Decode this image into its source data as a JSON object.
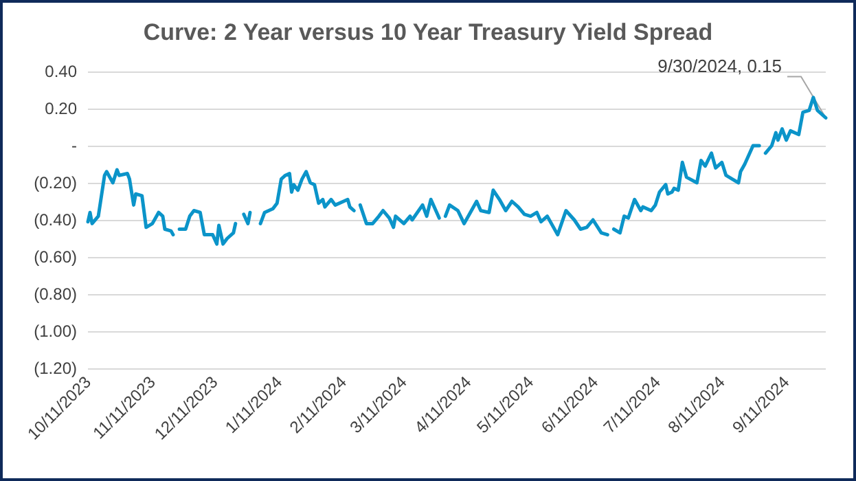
{
  "chart_data": {
    "type": "line",
    "title": "Curve: 2 Year versus 10 Year Treasury Yield Spread",
    "x": [
      "2023-10-11",
      "2023-10-12",
      "2023-10-13",
      "2023-10-16",
      "2023-10-19",
      "2023-10-20",
      "2023-10-23",
      "2023-10-25",
      "2023-10-26",
      "2023-10-30",
      "2023-10-31",
      "2023-11-02",
      "2023-11-03",
      "2023-11-06",
      "2023-11-08",
      "2023-11-11",
      "2023-11-14",
      "2023-11-16",
      "2023-11-17",
      "2023-11-20",
      "2023-11-21",
      "2023-11-22",
      "2023-11-24",
      "2023-11-27",
      "2023-11-29",
      "2023-12-01",
      "2023-12-04",
      "2023-12-06",
      "2023-12-10",
      "2023-12-12",
      "2023-12-13",
      "2023-12-15",
      "2023-12-17",
      "2023-12-20",
      "2023-12-21",
      "2023-12-23",
      "2023-12-25",
      "2023-12-27",
      "2023-12-28",
      "2023-12-30",
      "2024-01-02",
      "2024-01-04",
      "2024-01-08",
      "2024-01-10",
      "2024-01-12",
      "2024-01-14",
      "2024-01-16",
      "2024-01-17",
      "2024-01-18",
      "2024-01-20",
      "2024-01-22",
      "2024-01-24",
      "2024-01-26",
      "2024-01-28",
      "2024-01-30",
      "2024-02-01",
      "2024-02-02",
      "2024-02-05",
      "2024-02-07",
      "2024-02-11",
      "2024-02-13",
      "2024-02-14",
      "2024-02-16",
      "2024-02-17",
      "2024-02-19",
      "2024-02-22",
      "2024-02-25",
      "2024-02-28",
      "2024-03-01",
      "2024-03-04",
      "2024-03-06",
      "2024-03-07",
      "2024-03-11",
      "2024-03-14",
      "2024-03-15",
      "2024-03-20",
      "2024-03-22",
      "2024-03-24",
      "2024-03-28",
      "2024-03-29",
      "2024-03-31",
      "2024-04-02",
      "2024-04-06",
      "2024-04-09",
      "2024-04-12",
      "2024-04-15",
      "2024-04-17",
      "2024-04-21",
      "2024-04-23",
      "2024-04-26",
      "2024-04-29",
      "2024-05-02",
      "2024-05-05",
      "2024-05-08",
      "2024-05-11",
      "2024-05-14",
      "2024-05-16",
      "2024-05-19",
      "2024-05-24",
      "2024-05-28",
      "2024-06-01",
      "2024-06-04",
      "2024-06-07",
      "2024-06-10",
      "2024-06-14",
      "2024-06-17",
      "2024-06-18",
      "2024-06-20",
      "2024-06-23",
      "2024-06-25",
      "2024-06-27",
      "2024-06-30",
      "2024-07-03",
      "2024-07-04",
      "2024-07-08",
      "2024-07-10",
      "2024-07-12",
      "2024-07-15",
      "2024-07-16",
      "2024-07-18",
      "2024-07-19",
      "2024-07-21",
      "2024-07-23",
      "2024-07-25",
      "2024-07-30",
      "2024-08-01",
      "2024-08-03",
      "2024-08-06",
      "2024-08-08",
      "2024-08-11",
      "2024-08-13",
      "2024-08-16",
      "2024-08-19",
      "2024-08-20",
      "2024-08-22",
      "2024-08-26",
      "2024-08-29",
      "2024-08-30",
      "2024-09-01",
      "2024-09-04",
      "2024-09-06",
      "2024-09-07",
      "2024-09-09",
      "2024-09-11",
      "2024-09-13",
      "2024-09-17",
      "2024-09-19",
      "2024-09-22",
      "2024-09-24",
      "2024-09-26",
      "2024-09-30"
    ],
    "series": [
      {
        "color": "#0b94c9",
        "values": [
          -0.41,
          -0.36,
          -0.42,
          -0.38,
          -0.16,
          -0.14,
          -0.2,
          -0.13,
          -0.16,
          -0.15,
          -0.18,
          -0.32,
          -0.26,
          -0.27,
          -0.44,
          -0.42,
          -0.36,
          -0.38,
          -0.45,
          -0.46,
          -0.48,
          null,
          -0.45,
          -0.45,
          -0.38,
          -0.35,
          -0.36,
          -0.48,
          -0.48,
          -0.53,
          -0.43,
          -0.53,
          -0.5,
          -0.47,
          -0.42,
          null,
          -0.37,
          -0.42,
          -0.36,
          null,
          -0.42,
          -0.36,
          -0.34,
          -0.31,
          -0.18,
          -0.16,
          -0.15,
          -0.25,
          -0.21,
          -0.24,
          -0.18,
          -0.14,
          -0.2,
          -0.21,
          -0.31,
          -0.29,
          -0.33,
          -0.29,
          -0.32,
          -0.3,
          -0.29,
          -0.33,
          -0.35,
          null,
          -0.32,
          -0.42,
          -0.42,
          -0.38,
          -0.35,
          -0.39,
          -0.44,
          -0.38,
          -0.42,
          -0.38,
          -0.4,
          -0.32,
          -0.38,
          -0.29,
          -0.39,
          null,
          -0.38,
          -0.32,
          -0.35,
          -0.42,
          -0.36,
          -0.3,
          -0.35,
          -0.36,
          -0.24,
          -0.29,
          -0.35,
          -0.3,
          -0.33,
          -0.37,
          -0.38,
          -0.36,
          -0.41,
          -0.38,
          -0.48,
          -0.35,
          -0.4,
          -0.45,
          -0.44,
          -0.4,
          -0.47,
          -0.48,
          null,
          -0.45,
          -0.47,
          -0.38,
          -0.39,
          -0.29,
          -0.35,
          -0.33,
          -0.35,
          -0.32,
          -0.25,
          -0.21,
          -0.26,
          -0.25,
          -0.23,
          -0.24,
          -0.09,
          -0.17,
          -0.2,
          -0.08,
          -0.11,
          -0.04,
          -0.12,
          -0.09,
          -0.16,
          -0.18,
          -0.2,
          -0.14,
          -0.1,
          0,
          0,
          null,
          -0.04,
          0,
          0.07,
          0.03,
          0.09,
          0.03,
          0.08,
          0.06,
          0.18,
          0.19,
          0.26,
          0.19,
          0.15
        ]
      }
    ],
    "xlim": [
      "2023-10-11",
      "2024-09-30"
    ],
    "xticks": [
      {
        "value": "2023-10-11",
        "label": "10/11/2023"
      },
      {
        "value": "2023-11-11",
        "label": "11/11/2023"
      },
      {
        "value": "2023-12-11",
        "label": "12/11/2023"
      },
      {
        "value": "2024-01-11",
        "label": "1/11/2024"
      },
      {
        "value": "2024-02-11",
        "label": "2/11/2024"
      },
      {
        "value": "2024-03-11",
        "label": "3/11/2024"
      },
      {
        "value": "2024-04-11",
        "label": "4/11/2024"
      },
      {
        "value": "2024-05-11",
        "label": "5/11/2024"
      },
      {
        "value": "2024-06-11",
        "label": "6/11/2024"
      },
      {
        "value": "2024-07-11",
        "label": "7/11/2024"
      },
      {
        "value": "2024-08-11",
        "label": "8/11/2024"
      },
      {
        "value": "2024-09-11",
        "label": "9/11/2024"
      }
    ],
    "ylim": [
      -1.2,
      0.4
    ],
    "yticks": [
      {
        "value": -1.2,
        "label": "(1.20)"
      },
      {
        "value": -1.0,
        "label": "(1.00)"
      },
      {
        "value": -0.8,
        "label": "(0.80)"
      },
      {
        "value": -0.6,
        "label": "(0.60)"
      },
      {
        "value": -0.4,
        "label": "(0.40)"
      },
      {
        "value": -0.2,
        "label": "(0.20)"
      },
      {
        "value": 0,
        "label": "-"
      },
      {
        "value": 0.2,
        "label": "0.20"
      },
      {
        "value": 0.4,
        "label": "0.40"
      }
    ],
    "annotations": [
      {
        "text": "9/30/2024, 0.15",
        "x": "2024-09-30",
        "y": 0.15
      }
    ],
    "grid": "y",
    "marker": "none",
    "line_style": "solid"
  }
}
